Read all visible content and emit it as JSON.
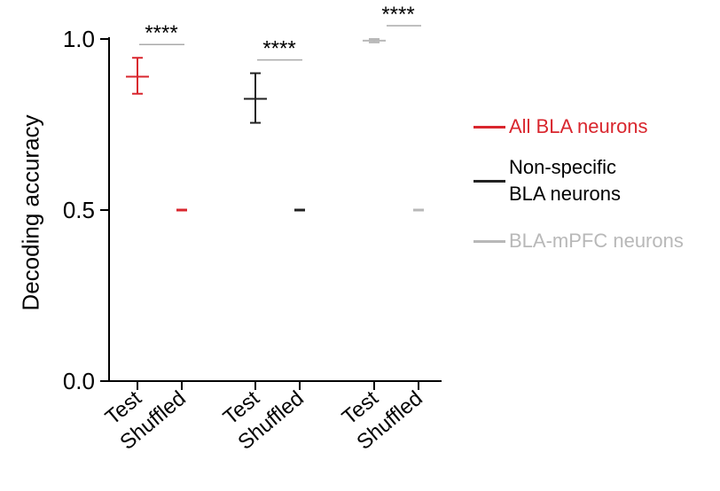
{
  "chart_data": {
    "type": "scatter",
    "ylabel": "Decoding accuracy",
    "xlabel": "",
    "ylim": [
      0.0,
      1.0
    ],
    "yticks": [
      "0.0",
      "0.5",
      "1.0"
    ],
    "categories": [
      "Test",
      "Shuffled",
      "Test",
      "Shuffled",
      "Test",
      "Shuffled"
    ],
    "series": [
      {
        "name": "All BLA neurons",
        "color": "#d9262e",
        "test": {
          "mean": 0.89,
          "low": 0.84,
          "high": 0.945
        },
        "shuffled": {
          "mean": 0.5,
          "low": 0.5,
          "high": 0.5
        },
        "significance": "****"
      },
      {
        "name": "Non-specific BLA neurons",
        "name_lines": [
          "Non-specific",
          "BLA neurons"
        ],
        "color": "#222222",
        "test": {
          "mean": 0.825,
          "low": 0.755,
          "high": 0.9
        },
        "shuffled": {
          "mean": 0.5,
          "low": 0.5,
          "high": 0.5
        },
        "significance": "****"
      },
      {
        "name": "BLA-mPFC neurons",
        "color": "#b8b8b8",
        "test": {
          "mean": 0.995,
          "low": 0.99,
          "high": 1.0
        },
        "shuffled": {
          "mean": 0.5,
          "low": 0.5,
          "high": 0.5
        },
        "significance": "****"
      }
    ],
    "legend_position": "right"
  }
}
